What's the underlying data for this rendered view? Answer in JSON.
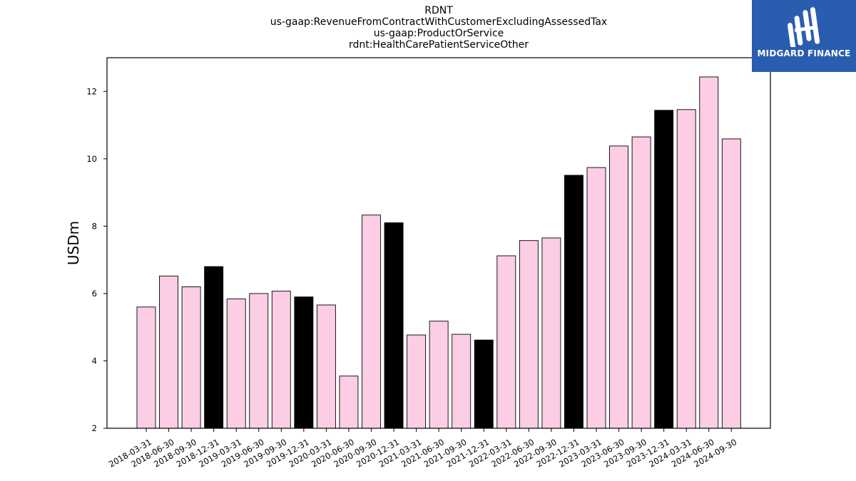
{
  "chart_data": {
    "type": "bar",
    "title_lines": [
      "RDNT",
      "us-gaap:RevenueFromContractWithCustomerExcludingAssessedTax",
      "us-gaap:ProductOrService",
      "rdnt:HealthCarePatientServiceOther"
    ],
    "ylabel": "USDm",
    "xlabel": "",
    "ylim": [
      2,
      13
    ],
    "yticks": [
      2,
      4,
      6,
      8,
      10,
      12
    ],
    "grid": false,
    "categories": [
      "2018-03-31",
      "2018-06-30",
      "2018-09-30",
      "2018-12-31",
      "2019-03-31",
      "2019-06-30",
      "2019-09-30",
      "2019-12-31",
      "2020-03-31",
      "2020-06-30",
      "2020-09-30",
      "2020-12-31",
      "2021-03-31",
      "2021-06-30",
      "2021-09-30",
      "2021-12-31",
      "2022-03-31",
      "2022-06-30",
      "2022-09-30",
      "2022-12-31",
      "2023-03-31",
      "2023-06-30",
      "2023-09-30",
      "2023-12-31",
      "2024-03-31",
      "2024-06-30",
      "2024-09-30"
    ],
    "values": [
      5.6,
      6.52,
      6.2,
      6.8,
      5.84,
      6.0,
      6.07,
      5.9,
      5.66,
      3.55,
      8.33,
      8.1,
      4.77,
      5.18,
      4.79,
      4.62,
      7.12,
      7.57,
      7.65,
      9.51,
      9.74,
      10.38,
      10.65,
      11.44,
      11.46,
      12.43,
      10.59
    ],
    "colors": {
      "quarter": "#fccde5",
      "year_end": "#000000",
      "edge": "#000000"
    }
  },
  "logo": {
    "text": "MIDGARD FINANCE"
  }
}
